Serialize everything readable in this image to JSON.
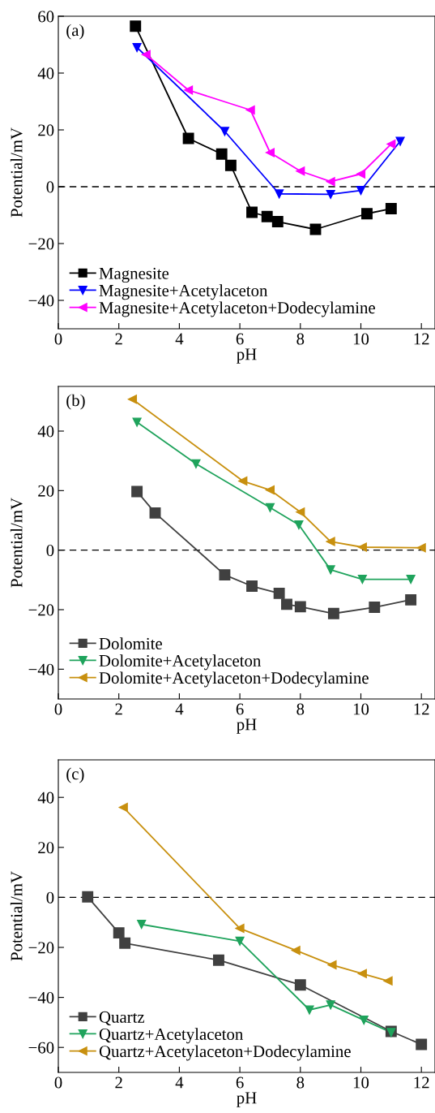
{
  "chart_data": [
    {
      "type": "line",
      "xlabel": "pH",
      "ylabel": "Potential/mV",
      "annotations": [
        "(a)"
      ],
      "xlim": [
        0,
        12.45
      ],
      "ylim": [
        -50,
        60
      ],
      "xticks": [
        0,
        2,
        4,
        6,
        8,
        10,
        12
      ],
      "yticks": [
        -40,
        -20,
        0,
        20,
        40,
        60
      ],
      "legend": "bottom left",
      "grid": false,
      "line_style": "solid",
      "ref_lines": [
        {
          "axis": "y",
          "value": 0,
          "color": "#000000",
          "line_style": "dashed"
        }
      ],
      "series": [
        {
          "name": "Magnesite",
          "color": "#000000",
          "marker": "square",
          "x": [
            2.55,
            4.3,
            5.4,
            5.7,
            6.4,
            6.9,
            7.25,
            8.5,
            10.2,
            11
          ],
          "values": [
            56.5,
            17,
            11.5,
            7.5,
            -9,
            -10.5,
            -12.3,
            -15,
            -9.5,
            -7.7
          ]
        },
        {
          "name": "Magnesite+Acetylaceton",
          "color": "#0000ff",
          "marker": "triangle_down",
          "x": [
            2.6,
            5.5,
            7.3,
            9,
            10,
            11.3
          ],
          "values": [
            49,
            19.5,
            -2.5,
            -2.7,
            -1.3,
            16
          ]
        },
        {
          "name": "Magnesite+Acetylaceton+Dodecylamine",
          "color": "#ff00ff",
          "marker": "triangle_left",
          "x": [
            2.9,
            4.3,
            6.35,
            7,
            8,
            9,
            10,
            11
          ],
          "values": [
            46.5,
            34,
            27,
            12,
            5.5,
            1.8,
            4.5,
            15
          ]
        }
      ]
    },
    {
      "type": "line",
      "xlabel": "pH",
      "ylabel": "Potential/mV",
      "annotations": [
        "(b)"
      ],
      "xlim": [
        0,
        12.45
      ],
      "ylim": [
        -50,
        55
      ],
      "xticks": [
        0,
        2,
        4,
        6,
        8,
        10,
        12
      ],
      "yticks": [
        -40,
        -20,
        0,
        20,
        40
      ],
      "legend": "bottom left",
      "grid": false,
      "line_style": "solid",
      "ref_lines": [
        {
          "axis": "y",
          "value": 0,
          "color": "#000000",
          "line_style": "dashed"
        }
      ],
      "series": [
        {
          "name": "Dolomite",
          "color": "#404040",
          "marker": "square",
          "x": [
            2.6,
            3.2,
            5.5,
            6.4,
            7.3,
            7.55,
            8,
            9.1,
            10.45,
            11.65
          ],
          "values": [
            19.7,
            12.5,
            -8.3,
            -12.1,
            -14.5,
            -18.2,
            -19,
            -21.3,
            -19.2,
            -16.7
          ]
        },
        {
          "name": "Dolomite+Acetylaceton",
          "color": "#1fa35c",
          "marker": "triangle_down",
          "x": [
            2.6,
            4.55,
            7,
            7.95,
            9,
            10.05,
            11.65
          ],
          "values": [
            43,
            29,
            14.3,
            8.5,
            -6.6,
            -9.8,
            -9.8
          ]
        },
        {
          "name": "Dolomite+Acetylaceton+Dodecylamine",
          "color": "#c8900f",
          "marker": "triangle_left",
          "x": [
            2.45,
            6.1,
            7,
            8,
            9,
            10.05,
            12
          ],
          "values": [
            50.7,
            23.2,
            20.2,
            12.8,
            2.9,
            1,
            0.8
          ]
        }
      ]
    },
    {
      "type": "line",
      "xlabel": "pH",
      "ylabel": "Potential/mV",
      "annotations": [
        "(c)"
      ],
      "xlim": [
        0,
        12.45
      ],
      "ylim": [
        -70,
        55
      ],
      "xticks": [
        0,
        2,
        4,
        6,
        8,
        10,
        12
      ],
      "yticks": [
        -60,
        -40,
        -20,
        0,
        20,
        40
      ],
      "legend": "bottom left",
      "grid": false,
      "line_style": "solid",
      "ref_lines": [
        {
          "axis": "y",
          "value": 0,
          "color": "#000000",
          "line_style": "dashed"
        }
      ],
      "series": [
        {
          "name": "Quartz",
          "color": "#404040",
          "marker": "square",
          "x": [
            0.97,
            2,
            2.2,
            5.3,
            8,
            11,
            12
          ],
          "values": [
            0.2,
            -14.2,
            -18.3,
            -25.1,
            -35,
            -53.6,
            -58.8
          ]
        },
        {
          "name": "Quartz+Acetylaceton",
          "color": "#1fa35c",
          "marker": "triangle_down",
          "x": [
            2.75,
            6,
            8.3,
            9,
            10.1,
            11
          ],
          "values": [
            -10.8,
            -17.5,
            -45,
            -43,
            -49.1,
            -54
          ]
        },
        {
          "name": "Quartz+Acetylaceton+Dodecylamine",
          "color": "#c8900f",
          "marker": "triangle_left",
          "x": [
            2.15,
            6,
            7.85,
            9.05,
            10.05,
            10.9
          ],
          "values": [
            36,
            -12.4,
            -21.2,
            -27,
            -30.5,
            -33.4
          ]
        }
      ]
    }
  ]
}
